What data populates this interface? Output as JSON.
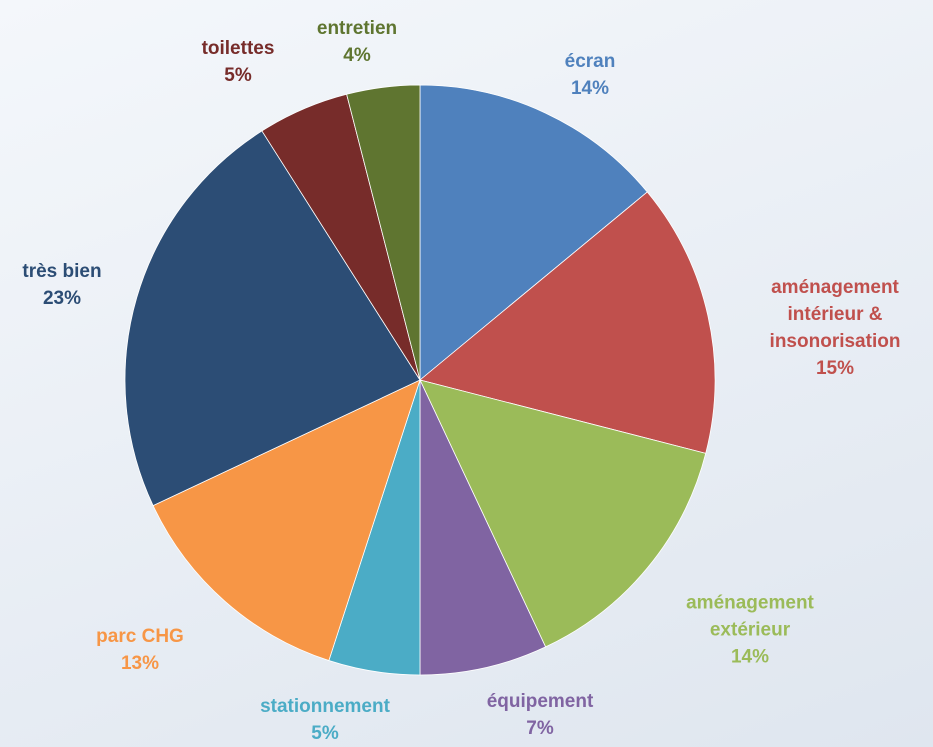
{
  "chart_data": {
    "type": "pie",
    "categories": [
      "écran",
      "aménagement intérieur & insonorisation",
      "aménagement extérieur",
      "équipement",
      "stationnement",
      "parc CHG",
      "très bien",
      "toilettes",
      "entretien"
    ],
    "values": [
      14,
      15,
      14,
      7,
      5,
      13,
      23,
      5,
      4
    ],
    "value_labels": [
      "14%",
      "15%",
      "14%",
      "7%",
      "5%",
      "13%",
      "23%",
      "5%",
      "4%"
    ],
    "colors": [
      "#4f81bd",
      "#c0504d",
      "#9bbb59",
      "#8064a2",
      "#4bacc6",
      "#f79646",
      "#2c4d75",
      "#772c2a",
      "#5f7530"
    ]
  }
}
